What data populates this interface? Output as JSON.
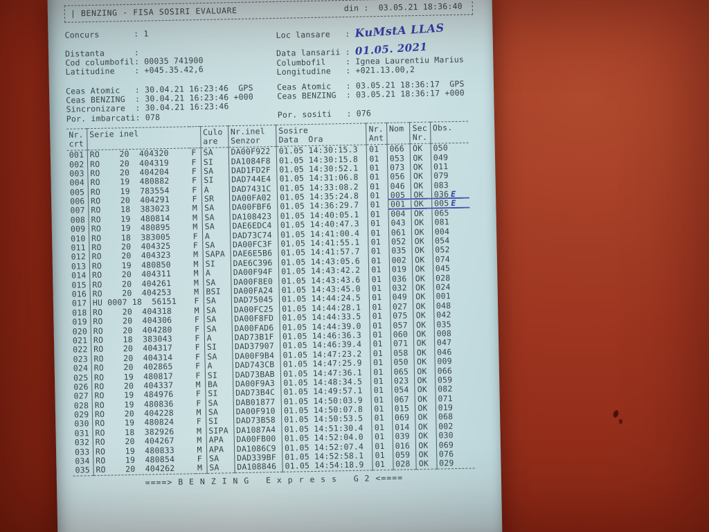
{
  "header": {
    "title": "| BENZING - FISA SOSIRI EVALUARE",
    "din_label": "din :",
    "din_value": "03.05.21 18:36:40"
  },
  "info": {
    "left_lines": [
      "Concurs       : 1",
      "",
      "Distanta      :",
      "Cod columbofil: 00035 741900",
      "Latitudine    : +045.35.42,6"
    ],
    "loc_label": "Loc lansare   : ",
    "loc_value": "KuMstA LLAS",
    "data_label": "Data lansarii : ",
    "data_value": "01.05. 2021",
    "columbofil_line": "Columbofil    : Ignea Laurentiu Marius",
    "longitudine_line": "Longitudine   : +021.13.00,2"
  },
  "clock": {
    "left_lines": [
      "Ceas Atomic   : 30.04.21 16:23:46  GPS",
      "Ceas BENZING  : 30.04.21 16:23:46 +000",
      "Sincronizare  : 30.04.21 16:23:46",
      "Por. imbarcati: 078"
    ],
    "right_lines": [
      "Ceas Atomic   : 03.05.21 18:36:17  GPS",
      "Ceas BENZING  : 03.05.21 18:36:17 +000",
      "",
      "Por. sositi   : 076"
    ]
  },
  "table": {
    "head": {
      "nr": {
        "l1": "Nr.",
        "l2": "crt"
      },
      "serie": {
        "l1": "Serie inel",
        "l2": ""
      },
      "culo": {
        "l1": "Culo",
        "l2": "are"
      },
      "senzor": {
        "l1": "Nr.inel",
        "l2": "Senzor"
      },
      "sosire": {
        "l1": "Sosire",
        "l2": "Data  Ora"
      },
      "ant": {
        "l1": "Nr.",
        "l2": "Ant"
      },
      "nom": {
        "l1": "Nom",
        "l2": ""
      },
      "sec": {
        "l1": "Sec",
        "l2": "Nr."
      },
      "obs": {
        "l1": "Obs.",
        "l2": ""
      }
    },
    "rows": [
      {
        "nr": "001",
        "serie": "RO    20  404320",
        "sex": "F",
        "culoare": "SA",
        "senzor": "DA00F922",
        "sosire": "01.05 14:30:15.3",
        "ant": "01",
        "nom": "066",
        "sec": "OK",
        "obs": "050"
      },
      {
        "nr": "002",
        "serie": "RO    20  404319",
        "sex": "F",
        "culoare": "SI",
        "senzor": "DA1084F8",
        "sosire": "01.05 14:30:15.8",
        "ant": "01",
        "nom": "053",
        "sec": "OK",
        "obs": "049"
      },
      {
        "nr": "003",
        "serie": "RO    20  404204",
        "sex": "F",
        "culoare": "SA",
        "senzor": "DAD1FD2F",
        "sosire": "01.05 14:30:52.1",
        "ant": "01",
        "nom": "073",
        "sec": "OK",
        "obs": "011"
      },
      {
        "nr": "004",
        "serie": "RO    19  480882",
        "sex": "F",
        "culoare": "SI",
        "senzor": "DAD744E4",
        "sosire": "01.05 14:31:06.8",
        "ant": "01",
        "nom": "056",
        "sec": "OK",
        "obs": "079"
      },
      {
        "nr": "005",
        "serie": "RO    19  783554",
        "sex": "F",
        "culoare": "A",
        "senzor": "DAD7431C",
        "sosire": "01.05 14:33:08.2",
        "ant": "01",
        "nom": "046",
        "sec": "OK",
        "obs": "083"
      },
      {
        "nr": "006",
        "serie": "RO    20  404291",
        "sex": "F",
        "culoare": "SR",
        "senzor": "DA00FA02",
        "sosire": "01.05 14:35:24.8",
        "ant": "01",
        "nom": "005",
        "sec": "OK",
        "obs": "036",
        "note": "E",
        "marked": true
      },
      {
        "nr": "007",
        "serie": "RO    18  383023",
        "sex": "M",
        "culoare": "SA",
        "senzor": "DA00FBF6",
        "sosire": "01.05 14:36:29.7",
        "ant": "01",
        "nom": "001",
        "sec": "OK",
        "obs": "005",
        "note": "E",
        "marked": true
      },
      {
        "nr": "008",
        "serie": "RO    19  480814",
        "sex": "M",
        "culoare": "SA",
        "senzor": "DA108423",
        "sosire": "01.05 14:40:05.1",
        "ant": "01",
        "nom": "004",
        "sec": "OK",
        "obs": "065"
      },
      {
        "nr": "009",
        "serie": "RO    19  480895",
        "sex": "M",
        "culoare": "SA",
        "senzor": "DAE6EDC4",
        "sosire": "01.05 14:40:47.3",
        "ant": "01",
        "nom": "043",
        "sec": "OK",
        "obs": "081"
      },
      {
        "nr": "010",
        "serie": "RO    18  383005",
        "sex": "F",
        "culoare": "A",
        "senzor": "DAD73C74",
        "sosire": "01.05 14:41:00.4",
        "ant": "01",
        "nom": "061",
        "sec": "OK",
        "obs": "004"
      },
      {
        "nr": "011",
        "serie": "RO    20  404325",
        "sex": "F",
        "culoare": "SA",
        "senzor": "DA00FC3F",
        "sosire": "01.05 14:41:55.1",
        "ant": "01",
        "nom": "052",
        "sec": "OK",
        "obs": "054"
      },
      {
        "nr": "012",
        "serie": "RO    20  404323",
        "sex": "M",
        "culoare": "SAPA",
        "senzor": "DAE6E5B6",
        "sosire": "01.05 14:41:57.7",
        "ant": "01",
        "nom": "035",
        "sec": "OK",
        "obs": "052"
      },
      {
        "nr": "013",
        "serie": "RO    19  480850",
        "sex": "M",
        "culoare": "SI",
        "senzor": "DAE6C396",
        "sosire": "01.05 14:43:05.6",
        "ant": "01",
        "nom": "002",
        "sec": "OK",
        "obs": "074"
      },
      {
        "nr": "014",
        "serie": "RO    20  404311",
        "sex": "M",
        "culoare": "A",
        "senzor": "DA00F94F",
        "sosire": "01.05 14:43:42.2",
        "ant": "01",
        "nom": "019",
        "sec": "OK",
        "obs": "045"
      },
      {
        "nr": "015",
        "serie": "RO    20  404261",
        "sex": "M",
        "culoare": "SA",
        "senzor": "DA00F8E0",
        "sosire": "01.05 14:43:43.6",
        "ant": "01",
        "nom": "036",
        "sec": "OK",
        "obs": "028"
      },
      {
        "nr": "016",
        "serie": "RO    20  404253",
        "sex": "M",
        "culoare": "BSI",
        "senzor": "DA00FA24",
        "sosire": "01.05 14:43:45.0",
        "ant": "01",
        "nom": "032",
        "sec": "OK",
        "obs": "024"
      },
      {
        "nr": "017",
        "serie": "HU 0007 18  56151",
        "sex": "F",
        "culoare": "SA",
        "senzor": "DAD75045",
        "sosire": "01.05 14:44:24.5",
        "ant": "01",
        "nom": "049",
        "sec": "OK",
        "obs": "001"
      },
      {
        "nr": "018",
        "serie": "RO    20  404318",
        "sex": "M",
        "culoare": "SA",
        "senzor": "DA00FC25",
        "sosire": "01.05 14:44:28.1",
        "ant": "01",
        "nom": "027",
        "sec": "OK",
        "obs": "048"
      },
      {
        "nr": "019",
        "serie": "RO    20  404306",
        "sex": "F",
        "culoare": "SA",
        "senzor": "DA00F8FD",
        "sosire": "01.05 14:44:33.5",
        "ant": "01",
        "nom": "075",
        "sec": "OK",
        "obs": "042"
      },
      {
        "nr": "020",
        "serie": "RO    20  404280",
        "sex": "F",
        "culoare": "SA",
        "senzor": "DA00FAD6",
        "sosire": "01.05 14:44:39.0",
        "ant": "01",
        "nom": "057",
        "sec": "OK",
        "obs": "035"
      },
      {
        "nr": "021",
        "serie": "RO    18  383043",
        "sex": "F",
        "culoare": "A",
        "senzor": "DAD73B1F",
        "sosire": "01.05 14:46:36.3",
        "ant": "01",
        "nom": "060",
        "sec": "OK",
        "obs": "008"
      },
      {
        "nr": "022",
        "serie": "RO    20  404317",
        "sex": "F",
        "culoare": "SI",
        "senzor": "DAD37907",
        "sosire": "01.05 14:46:39.4",
        "ant": "01",
        "nom": "071",
        "sec": "OK",
        "obs": "047"
      },
      {
        "nr": "023",
        "serie": "RO    20  404314",
        "sex": "F",
        "culoare": "SA",
        "senzor": "DA00F9B4",
        "sosire": "01.05 14:47:23.2",
        "ant": "01",
        "nom": "058",
        "sec": "OK",
        "obs": "046"
      },
      {
        "nr": "024",
        "serie": "RO    20  402865",
        "sex": "F",
        "culoare": "A",
        "senzor": "DAD743CB",
        "sosire": "01.05 14:47:25.9",
        "ant": "01",
        "nom": "050",
        "sec": "OK",
        "obs": "009"
      },
      {
        "nr": "025",
        "serie": "RO    19  480817",
        "sex": "F",
        "culoare": "SI",
        "senzor": "DAD73BAB",
        "sosire": "01.05 14:47:36.1",
        "ant": "01",
        "nom": "065",
        "sec": "OK",
        "obs": "066"
      },
      {
        "nr": "026",
        "serie": "RO    20  404337",
        "sex": "M",
        "culoare": "BA",
        "senzor": "DA00F9A3",
        "sosire": "01.05 14:48:34.5",
        "ant": "01",
        "nom": "023",
        "sec": "OK",
        "obs": "059"
      },
      {
        "nr": "027",
        "serie": "RO    19  484976",
        "sex": "F",
        "culoare": "SI",
        "senzor": "DAD73B4C",
        "sosire": "01.05 14:49:57.1",
        "ant": "01",
        "nom": "054",
        "sec": "OK",
        "obs": "082"
      },
      {
        "nr": "028",
        "serie": "RO    19  480836",
        "sex": "F",
        "culoare": "SA",
        "senzor": "DAB01877",
        "sosire": "01.05 14:50:03.9",
        "ant": "01",
        "nom": "067",
        "sec": "OK",
        "obs": "071"
      },
      {
        "nr": "029",
        "serie": "RO    20  404228",
        "sex": "M",
        "culoare": "SA",
        "senzor": "DA00F910",
        "sosire": "01.05 14:50:07.8",
        "ant": "01",
        "nom": "015",
        "sec": "OK",
        "obs": "019"
      },
      {
        "nr": "030",
        "serie": "RO    19  480824",
        "sex": "F",
        "culoare": "SI",
        "senzor": "DAD73B58",
        "sosire": "01.05 14:50:53.5",
        "ant": "01",
        "nom": "069",
        "sec": "OK",
        "obs": "068"
      },
      {
        "nr": "031",
        "serie": "RO    18  382926",
        "sex": "M",
        "culoare": "SIPA",
        "senzor": "DA1087A4",
        "sosire": "01.05 14:51:30.4",
        "ant": "01",
        "nom": "014",
        "sec": "OK",
        "obs": "002"
      },
      {
        "nr": "032",
        "serie": "RO    20  404267",
        "sex": "M",
        "culoare": "APA",
        "senzor": "DA00FB00",
        "sosire": "01.05 14:52:04.0",
        "ant": "01",
        "nom": "039",
        "sec": "OK",
        "obs": "030"
      },
      {
        "nr": "033",
        "serie": "RO    19  480833",
        "sex": "M",
        "culoare": "APA",
        "senzor": "DA1086C9",
        "sosire": "01.05 14:52:07.4",
        "ant": "01",
        "nom": "016",
        "sec": "OK",
        "obs": "069"
      },
      {
        "nr": "034",
        "serie": "RO    19  480854",
        "sex": "F",
        "culoare": "SA",
        "senzor": "DAD339BF",
        "sosire": "01.05 14:52:58.1",
        "ant": "01",
        "nom": "059",
        "sec": "OK",
        "obs": "076"
      },
      {
        "nr": "035",
        "serie": "RO    20  404262",
        "sex": "M",
        "culoare": "SA",
        "senzor": "DA108846",
        "sosire": "01.05 14:54:18.9",
        "ant": "01",
        "nom": "028",
        "sec": "OK",
        "obs": "029"
      }
    ]
  },
  "footer": {
    "branding": "====> B E N Z I N G   E x p r e s s   G 2 <===="
  }
}
